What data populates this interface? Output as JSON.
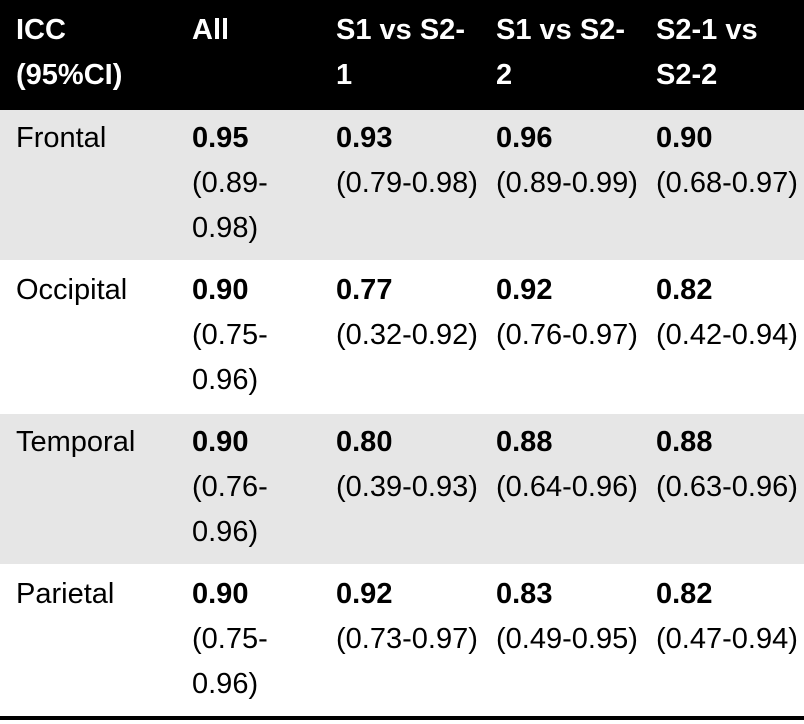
{
  "table": {
    "header": [
      "ICC (95%CI)",
      "All",
      "S1 vs S2-1",
      "S1 vs S2-2",
      "S2-1 vs S2-2"
    ],
    "rows": [
      {
        "label": "Frontal",
        "cells": [
          {
            "value": "0.95",
            "ci": "(0.89-0.98)"
          },
          {
            "value": "0.93",
            "ci": "(0.79-0.98)"
          },
          {
            "value": "0.96",
            "ci": "(0.89-0.99)"
          },
          {
            "value": "0.90",
            "ci": "(0.68-0.97)"
          }
        ]
      },
      {
        "label": "Occipital",
        "cells": [
          {
            "value": "0.90",
            "ci": "(0.75-0.96)"
          },
          {
            "value": "0.77",
            "ci": "(0.32-0.92)"
          },
          {
            "value": "0.92",
            "ci": "(0.76-0.97)"
          },
          {
            "value": "0.82",
            "ci": "(0.42-0.94)"
          }
        ]
      },
      {
        "label": "Temporal",
        "cells": [
          {
            "value": "0.90",
            "ci": "(0.76-0.96)"
          },
          {
            "value": "0.80",
            "ci": "(0.39-0.93)"
          },
          {
            "value": "0.88",
            "ci": "(0.64-0.96)"
          },
          {
            "value": "0.88",
            "ci": "(0.63-0.96)"
          }
        ]
      },
      {
        "label": "Parietal",
        "cells": [
          {
            "value": "0.90",
            "ci": "(0.75-0.96)"
          },
          {
            "value": "0.92",
            "ci": "(0.73-0.97)"
          },
          {
            "value": "0.83",
            "ci": "(0.49-0.95)"
          },
          {
            "value": "0.82",
            "ci": "(0.47-0.94)"
          }
        ]
      }
    ]
  }
}
